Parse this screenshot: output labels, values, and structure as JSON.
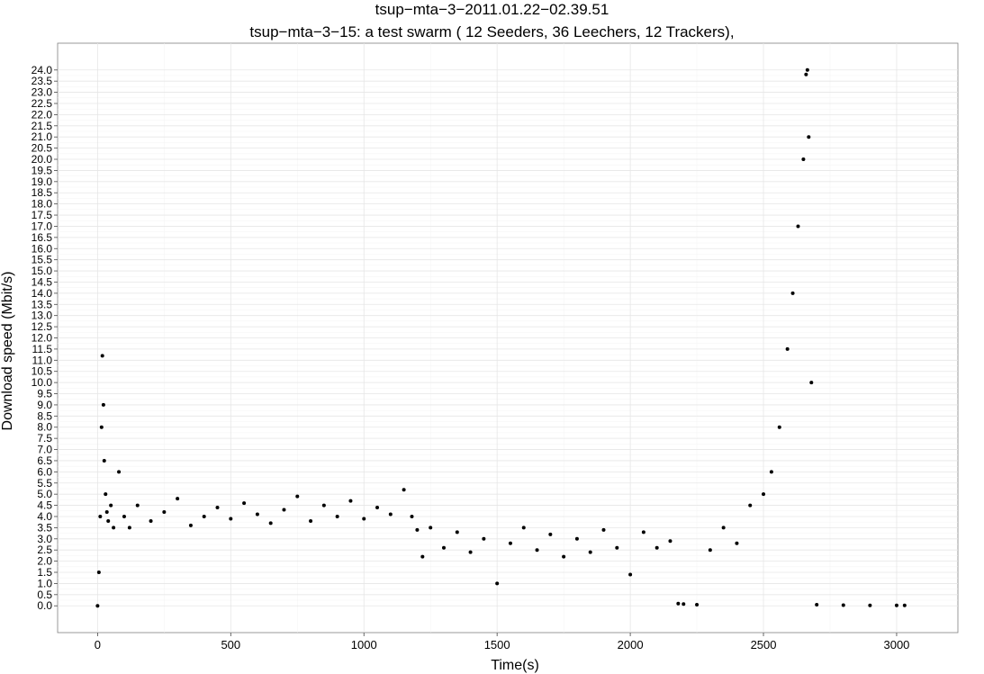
{
  "chart_data": {
    "type": "scatter",
    "title": "tsup−mta−3−2011.01.22−02.39.51",
    "subtitle": "tsup−mta−3−15: a test swarm ( 12 Seeders,  36 Leechers,  12 Trackers),",
    "xlabel": "Time(s)",
    "ylabel": "Download speed (Mbit/s)",
    "xlim": [
      -150,
      3230
    ],
    "ylim": [
      -1.2,
      25.2
    ],
    "x_ticks": [
      "0",
      "500",
      "1000",
      "1500",
      "2000",
      "2500",
      "3000"
    ],
    "x_tick_values": [
      0,
      500,
      1000,
      1500,
      2000,
      2500,
      3000
    ],
    "y_ticks": [
      "0.0",
      "0.5",
      "1.0",
      "1.5",
      "2.0",
      "2.5",
      "3.0",
      "3.5",
      "4.0",
      "4.5",
      "5.0",
      "5.5",
      "6.0",
      "6.5",
      "7.0",
      "7.5",
      "8.0",
      "8.5",
      "9.0",
      "9.5",
      "10.0",
      "10.5",
      "11.0",
      "11.5",
      "12.0",
      "12.5",
      "13.0",
      "13.5",
      "14.0",
      "14.5",
      "15.0",
      "15.5",
      "16.0",
      "16.5",
      "17.0",
      "17.5",
      "18.0",
      "18.5",
      "19.0",
      "19.5",
      "20.0",
      "20.5",
      "21.0",
      "21.5",
      "22.0",
      "22.5",
      "23.0",
      "23.5",
      "24.0"
    ],
    "grid": true,
    "legend": "none",
    "marker_color": "#000000",
    "series": [
      {
        "x": [
          0,
          5,
          10,
          15,
          18,
          22,
          25,
          30,
          35,
          40,
          50,
          60,
          80,
          100,
          120,
          150,
          200,
          250,
          300,
          350,
          400,
          450,
          500,
          550,
          600,
          650,
          700,
          750,
          800,
          850,
          900,
          950,
          1000,
          1050,
          1100,
          1150,
          1180,
          1200,
          1220,
          1250,
          1300,
          1350,
          1400,
          1450,
          1500,
          1550,
          1600,
          1650,
          1700,
          1750,
          1800,
          1850,
          1900,
          1950,
          2000,
          2050,
          2100,
          2150,
          2180,
          2200,
          2250,
          2300,
          2350,
          2400,
          2450,
          2500,
          2530,
          2560,
          2590,
          2610,
          2630,
          2650,
          2660,
          2665,
          2670,
          2680,
          2700,
          2800,
          2900,
          3000,
          3030
        ],
        "y": [
          0.0,
          1.5,
          4.0,
          8.0,
          11.2,
          9.0,
          6.5,
          5.0,
          4.2,
          3.8,
          4.5,
          3.5,
          6.0,
          4.0,
          3.5,
          4.5,
          3.8,
          4.2,
          4.8,
          3.6,
          4.0,
          4.4,
          3.9,
          4.6,
          4.1,
          3.7,
          4.3,
          4.9,
          3.8,
          4.5,
          4.0,
          4.7,
          3.9,
          4.4,
          4.1,
          5.2,
          4.0,
          3.4,
          2.2,
          3.5,
          2.6,
          3.3,
          2.4,
          3.0,
          1.0,
          2.8,
          3.5,
          2.5,
          3.2,
          2.2,
          3.0,
          2.4,
          3.4,
          2.6,
          1.4,
          3.3,
          2.6,
          2.9,
          0.1,
          0.08,
          0.05,
          2.5,
          3.5,
          2.8,
          4.5,
          5.0,
          6.0,
          8.0,
          11.5,
          14.0,
          17.0,
          20.0,
          23.8,
          24.0,
          21.0,
          10.0,
          0.05,
          0.03,
          0.02,
          0.02,
          0.02
        ]
      }
    ]
  }
}
